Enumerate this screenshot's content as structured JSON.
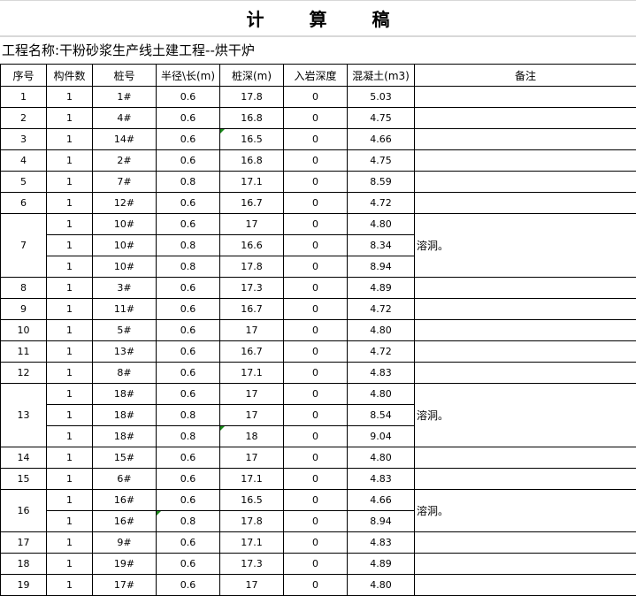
{
  "title": "计 算 稿",
  "project": "工程名称:干粉砂浆生产线土建工程--烘干炉",
  "headers": [
    "序号",
    "构件数",
    "桩号",
    "半径\\长(m)",
    "桩深(m)",
    "入岩深度",
    "混凝土(m3)",
    "备注"
  ],
  "groups": [
    {
      "no": "1",
      "remark": "",
      "items": [
        {
          "count": "1",
          "pile": "1#",
          "radius": "0.6",
          "depth": "17.8",
          "rock": "0",
          "concrete": "5.03"
        }
      ]
    },
    {
      "no": "2",
      "remark": "",
      "items": [
        {
          "count": "1",
          "pile": "4#",
          "radius": "0.6",
          "depth": "16.8",
          "rock": "0",
          "concrete": "4.75"
        }
      ]
    },
    {
      "no": "3",
      "remark": "",
      "items": [
        {
          "count": "1",
          "pile": "14#",
          "radius": "0.6",
          "depth": "16.5",
          "rock": "0",
          "concrete": "4.66",
          "flag": "depth"
        }
      ]
    },
    {
      "no": "4",
      "remark": "",
      "items": [
        {
          "count": "1",
          "pile": "2#",
          "radius": "0.6",
          "depth": "16.8",
          "rock": "0",
          "concrete": "4.75"
        }
      ]
    },
    {
      "no": "5",
      "remark": "",
      "items": [
        {
          "count": "1",
          "pile": "7#",
          "radius": "0.8",
          "depth": "17.1",
          "rock": "0",
          "concrete": "8.59"
        }
      ]
    },
    {
      "no": "6",
      "remark": "",
      "items": [
        {
          "count": "1",
          "pile": "12#",
          "radius": "0.6",
          "depth": "16.7",
          "rock": "0",
          "concrete": "4.72"
        }
      ]
    },
    {
      "no": "7",
      "remark": "溶洞。",
      "items": [
        {
          "count": "1",
          "pile": "10#",
          "radius": "0.6",
          "depth": "17",
          "rock": "0",
          "concrete": "4.80"
        },
        {
          "count": "1",
          "pile": "10#",
          "radius": "0.8",
          "depth": "16.6",
          "rock": "0",
          "concrete": "8.34"
        },
        {
          "count": "1",
          "pile": "10#",
          "radius": "0.8",
          "depth": "17.8",
          "rock": "0",
          "concrete": "8.94"
        }
      ]
    },
    {
      "no": "8",
      "remark": "",
      "items": [
        {
          "count": "1",
          "pile": "3#",
          "radius": "0.6",
          "depth": "17.3",
          "rock": "0",
          "concrete": "4.89"
        }
      ]
    },
    {
      "no": "9",
      "remark": "",
      "items": [
        {
          "count": "1",
          "pile": "11#",
          "radius": "0.6",
          "depth": "16.7",
          "rock": "0",
          "concrete": "4.72"
        }
      ]
    },
    {
      "no": "10",
      "remark": "",
      "items": [
        {
          "count": "1",
          "pile": "5#",
          "radius": "0.6",
          "depth": "17",
          "rock": "0",
          "concrete": "4.80"
        }
      ]
    },
    {
      "no": "11",
      "remark": "",
      "items": [
        {
          "count": "1",
          "pile": "13#",
          "radius": "0.6",
          "depth": "16.7",
          "rock": "0",
          "concrete": "4.72"
        }
      ]
    },
    {
      "no": "12",
      "remark": "",
      "items": [
        {
          "count": "1",
          "pile": "8#",
          "radius": "0.6",
          "depth": "17.1",
          "rock": "0",
          "concrete": "4.83"
        }
      ]
    },
    {
      "no": "13",
      "remark": "溶洞。",
      "items": [
        {
          "count": "1",
          "pile": "18#",
          "radius": "0.6",
          "depth": "17",
          "rock": "0",
          "concrete": "4.80"
        },
        {
          "count": "1",
          "pile": "18#",
          "radius": "0.8",
          "depth": "17",
          "rock": "0",
          "concrete": "8.54"
        },
        {
          "count": "1",
          "pile": "18#",
          "radius": "0.8",
          "depth": "18",
          "rock": "0",
          "concrete": "9.04",
          "flag": "depth"
        }
      ]
    },
    {
      "no": "14",
      "remark": "",
      "items": [
        {
          "count": "1",
          "pile": "15#",
          "radius": "0.6",
          "depth": "17",
          "rock": "0",
          "concrete": "4.80"
        }
      ]
    },
    {
      "no": "15",
      "remark": "",
      "items": [
        {
          "count": "1",
          "pile": "6#",
          "radius": "0.6",
          "depth": "17.1",
          "rock": "0",
          "concrete": "4.83"
        }
      ]
    },
    {
      "no": "16",
      "remark": "溶洞。",
      "items": [
        {
          "count": "1",
          "pile": "16#",
          "radius": "0.6",
          "depth": "16.5",
          "rock": "0",
          "concrete": "4.66"
        },
        {
          "count": "1",
          "pile": "16#",
          "radius": "0.8",
          "depth": "17.8",
          "rock": "0",
          "concrete": "8.94",
          "flag": "radius"
        }
      ]
    },
    {
      "no": "17",
      "remark": "",
      "items": [
        {
          "count": "1",
          "pile": "9#",
          "radius": "0.6",
          "depth": "17.1",
          "rock": "0",
          "concrete": "4.83"
        }
      ]
    },
    {
      "no": "18",
      "remark": "",
      "items": [
        {
          "count": "1",
          "pile": "19#",
          "radius": "0.6",
          "depth": "17.3",
          "rock": "0",
          "concrete": "4.89"
        }
      ]
    },
    {
      "no": "19",
      "remark": "",
      "items": [
        {
          "count": "1",
          "pile": "17#",
          "radius": "0.6",
          "depth": "17",
          "rock": "0",
          "concrete": "4.80"
        }
      ]
    }
  ]
}
